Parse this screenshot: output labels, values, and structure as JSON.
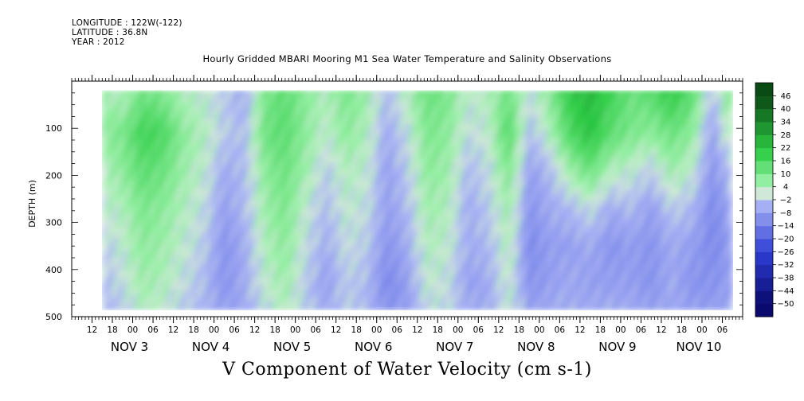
{
  "header": {
    "longitude": "LONGITUDE : 122W(-122)",
    "latitude": "LATITUDE : 36.8N",
    "year": "YEAR : 2012"
  },
  "chart_data": {
    "type": "heatmap",
    "title": "Hourly Gridded MBARI Mooring M1 Sea Water Temperature and Salinity Observations",
    "xlabel": "V Component of Water Velocity (cm s-1)",
    "ylabel": "DEPTH (m)",
    "x_time_range": [
      "2012-11-02 06:00",
      "2012-11-10 12:00"
    ],
    "data_time_range": [
      "2012-11-02 15:00",
      "2012-11-10 09:00"
    ],
    "ylim": [
      500,
      0
    ],
    "data_depth_range": [
      20,
      485
    ],
    "y_ticks": [
      100,
      200,
      300,
      400,
      500
    ],
    "x_hour_ticks": [
      {
        "t": "2012-11-02 12:00",
        "label": "12"
      },
      {
        "t": "2012-11-02 18:00",
        "label": "18"
      },
      {
        "t": "2012-11-03 00:00",
        "label": "00"
      },
      {
        "t": "2012-11-03 06:00",
        "label": "06"
      },
      {
        "t": "2012-11-03 12:00",
        "label": "12"
      },
      {
        "t": "2012-11-03 18:00",
        "label": "18"
      },
      {
        "t": "2012-11-04 00:00",
        "label": "00"
      },
      {
        "t": "2012-11-04 06:00",
        "label": "06"
      },
      {
        "t": "2012-11-04 12:00",
        "label": "12"
      },
      {
        "t": "2012-11-04 18:00",
        "label": "18"
      },
      {
        "t": "2012-11-05 00:00",
        "label": "00"
      },
      {
        "t": "2012-11-05 06:00",
        "label": "06"
      },
      {
        "t": "2012-11-05 12:00",
        "label": "12"
      },
      {
        "t": "2012-11-05 18:00",
        "label": "18"
      },
      {
        "t": "2012-11-06 00:00",
        "label": "00"
      },
      {
        "t": "2012-11-06 06:00",
        "label": "06"
      },
      {
        "t": "2012-11-06 12:00",
        "label": "12"
      },
      {
        "t": "2012-11-06 18:00",
        "label": "18"
      },
      {
        "t": "2012-11-07 00:00",
        "label": "00"
      },
      {
        "t": "2012-11-07 06:00",
        "label": "06"
      },
      {
        "t": "2012-11-07 12:00",
        "label": "12"
      },
      {
        "t": "2012-11-07 18:00",
        "label": "18"
      },
      {
        "t": "2012-11-08 00:00",
        "label": "00"
      },
      {
        "t": "2012-11-08 06:00",
        "label": "06"
      },
      {
        "t": "2012-11-08 12:00",
        "label": "12"
      },
      {
        "t": "2012-11-08 18:00",
        "label": "18"
      },
      {
        "t": "2012-11-09 00:00",
        "label": "00"
      },
      {
        "t": "2012-11-09 06:00",
        "label": "06"
      },
      {
        "t": "2012-11-09 12:00",
        "label": "12"
      },
      {
        "t": "2012-11-09 18:00",
        "label": "18"
      },
      {
        "t": "2012-11-10 00:00",
        "label": "00"
      },
      {
        "t": "2012-11-10 06:00",
        "label": "06"
      }
    ],
    "x_day_labels": [
      {
        "t": "2012-11-03 00:00",
        "label": "NOV  3"
      },
      {
        "t": "2012-11-04 00:00",
        "label": "NOV  4"
      },
      {
        "t": "2012-11-05 00:00",
        "label": "NOV  5"
      },
      {
        "t": "2012-11-06 00:00",
        "label": "NOV  6"
      },
      {
        "t": "2012-11-07 00:00",
        "label": "NOV  7"
      },
      {
        "t": "2012-11-08 00:00",
        "label": "NOV  8"
      },
      {
        "t": "2012-11-09 00:00",
        "label": "NOV  9"
      },
      {
        "t": "2012-11-10 00:00",
        "label": "NOV 10"
      }
    ],
    "colorbar": {
      "levels": [
        -50,
        -44,
        -38,
        -32,
        -26,
        -20,
        -14,
        -8,
        -2,
        4,
        10,
        16,
        22,
        28,
        34,
        40,
        46
      ],
      "colors": {
        "dark_negative": "#0a0a6e",
        "mid_negative": "#2e3fd6",
        "light_negative": "#aab4f5",
        "near_zero": "#cfe8d8",
        "light_positive": "#9af0a8",
        "mid_positive": "#2ece46",
        "dark_positive": "#0a4a14"
      }
    },
    "velocity_field_cm_s": {
      "times": [
        "2012-11-02 15:00",
        "2012-11-02 21:00",
        "2012-11-03 03:00",
        "2012-11-03 09:00",
        "2012-11-03 15:00",
        "2012-11-03 21:00",
        "2012-11-04 03:00",
        "2012-11-04 09:00",
        "2012-11-04 15:00",
        "2012-11-04 21:00",
        "2012-11-05 03:00",
        "2012-11-05 09:00",
        "2012-11-05 15:00",
        "2012-11-05 21:00",
        "2012-11-06 03:00",
        "2012-11-06 09:00",
        "2012-11-06 15:00",
        "2012-11-06 21:00",
        "2012-11-07 03:00",
        "2012-11-07 09:00",
        "2012-11-07 15:00",
        "2012-11-07 21:00",
        "2012-11-08 03:00",
        "2012-11-08 09:00",
        "2012-11-08 15:00",
        "2012-11-08 21:00",
        "2012-11-09 03:00",
        "2012-11-09 09:00",
        "2012-11-09 15:00",
        "2012-11-09 21:00",
        "2012-11-10 03:00",
        "2012-11-10 09:00"
      ],
      "depths": [
        30,
        110,
        190,
        270,
        350,
        430,
        480
      ],
      "values": [
        [
          6,
          4,
          12,
          10,
          4,
          2,
          -2,
          -6,
          10,
          14,
          8,
          4,
          10,
          6,
          -4,
          4,
          12,
          10,
          2,
          4,
          12,
          0,
          8,
          20,
          24,
          18,
          12,
          14,
          20,
          14,
          -4,
          12
        ],
        [
          8,
          10,
          18,
          16,
          8,
          4,
          -2,
          -4,
          12,
          14,
          8,
          2,
          8,
          4,
          -6,
          0,
          10,
          8,
          0,
          2,
          16,
          -4,
          4,
          16,
          22,
          14,
          10,
          8,
          12,
          8,
          -8,
          6
        ],
        [
          4,
          8,
          14,
          12,
          6,
          2,
          -6,
          -4,
          8,
          12,
          6,
          -2,
          4,
          2,
          -8,
          -2,
          8,
          6,
          -4,
          0,
          10,
          -8,
          -4,
          6,
          12,
          4,
          2,
          -2,
          6,
          2,
          -10,
          -2
        ],
        [
          2,
          4,
          10,
          8,
          4,
          0,
          -8,
          -4,
          6,
          10,
          2,
          -4,
          2,
          0,
          -8,
          -4,
          6,
          4,
          -6,
          -2,
          6,
          -10,
          -6,
          -4,
          0,
          -6,
          -4,
          -8,
          -2,
          -4,
          -12,
          -6
        ],
        [
          -2,
          2,
          8,
          6,
          2,
          -2,
          -10,
          -6,
          4,
          8,
          0,
          -6,
          0,
          -2,
          -10,
          -6,
          4,
          2,
          -6,
          -4,
          4,
          -12,
          -8,
          -8,
          -6,
          -10,
          -8,
          -10,
          -6,
          -8,
          -12,
          -8
        ],
        [
          -4,
          0,
          6,
          4,
          0,
          -4,
          -10,
          -6,
          2,
          6,
          -2,
          -8,
          -2,
          -4,
          -12,
          -8,
          2,
          0,
          -8,
          -6,
          2,
          -10,
          -8,
          -6,
          -8,
          -8,
          -8,
          -10,
          -6,
          -10,
          -10,
          -8
        ],
        [
          -4,
          -2,
          4,
          2,
          -2,
          -4,
          -8,
          -6,
          0,
          4,
          -2,
          -6,
          -2,
          -4,
          -10,
          -8,
          0,
          0,
          -6,
          -6,
          2,
          -8,
          -6,
          -6,
          -6,
          -6,
          -6,
          -8,
          -6,
          -8,
          -8,
          -6
        ]
      ]
    }
  }
}
